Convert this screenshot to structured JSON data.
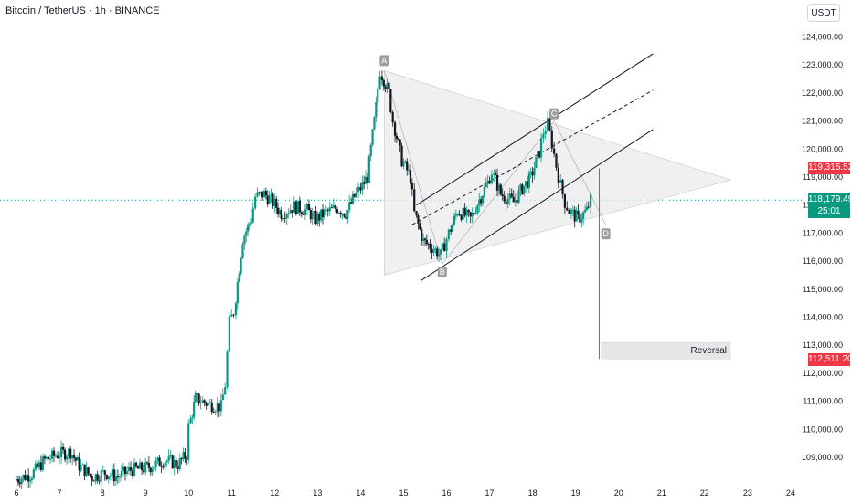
{
  "header": {
    "symbol_title": "Bitcoin / TetherUS · 1h · BINANCE",
    "currency_button": "USDT"
  },
  "price_tags": {
    "upper_red": "119,315.52",
    "current": "118,179.49",
    "countdown": "25:01",
    "lower_red": "112,511.20"
  },
  "annotations": {
    "point_a": "A",
    "point_b": "B",
    "point_c": "C",
    "point_d": "D",
    "reversal": "Reversal"
  },
  "colors": {
    "up": "#089981",
    "down": "#131722",
    "accent_red": "#f23645",
    "current_line": "#089981"
  },
  "chart_data": {
    "type": "candlestick",
    "title": "Bitcoin / TetherUS · 1h · BINANCE",
    "y_ticks": [
      109000,
      110000,
      111000,
      112000,
      113000,
      114000,
      115000,
      116000,
      117000,
      118000,
      119000,
      120000,
      121000,
      122000,
      123000,
      124000
    ],
    "y_tick_labels": [
      "109,000.00",
      "110,000.00",
      "111,000.00",
      "112,000.00",
      "113,000.00",
      "114,000.00",
      "115,000.00",
      "116,000.00",
      "117,000.00",
      "118,000.00",
      "119,000.00",
      "120,000.00",
      "121,000.00",
      "122,000.00",
      "123,000.00",
      "124,000.00"
    ],
    "x_ticks": [
      6,
      7,
      8,
      9,
      10,
      11,
      12,
      13,
      14,
      15,
      16,
      17,
      18,
      19,
      20,
      21,
      22,
      23,
      24
    ],
    "x_tick_labels": [
      "6",
      "7",
      "8",
      "9",
      "10",
      "11",
      "12",
      "13",
      "14",
      "15",
      "16",
      "17",
      "18",
      "19",
      "20",
      "21",
      "22",
      "23",
      "24"
    ],
    "current_price": 118179.49,
    "price_path": [
      [
        6.0,
        108200
      ],
      [
        6.4,
        108400
      ],
      [
        6.7,
        108900
      ],
      [
        7.0,
        109100
      ],
      [
        7.3,
        109200
      ],
      [
        7.5,
        108700
      ],
      [
        7.8,
        108300
      ],
      [
        8.1,
        108450
      ],
      [
        8.4,
        108300
      ],
      [
        8.7,
        108550
      ],
      [
        9.0,
        108600
      ],
      [
        9.2,
        108700
      ],
      [
        9.5,
        108900
      ],
      [
        9.8,
        108750
      ],
      [
        10.0,
        109100
      ],
      [
        10.05,
        110100
      ],
      [
        10.2,
        111100
      ],
      [
        10.5,
        110900
      ],
      [
        10.8,
        110800
      ],
      [
        10.9,
        111600
      ],
      [
        11.0,
        113800
      ],
      [
        11.1,
        114200
      ],
      [
        11.3,
        116800
      ],
      [
        11.5,
        117500
      ],
      [
        11.6,
        118300
      ],
      [
        11.8,
        118400
      ],
      [
        12.0,
        118100
      ],
      [
        12.2,
        117700
      ],
      [
        12.5,
        117950
      ],
      [
        12.8,
        117800
      ],
      [
        13.0,
        117500
      ],
      [
        13.2,
        117700
      ],
      [
        13.5,
        117900
      ],
      [
        13.7,
        117700
      ],
      [
        13.9,
        118300
      ],
      [
        14.0,
        118500
      ],
      [
        14.2,
        119000
      ],
      [
        14.4,
        121500
      ],
      [
        14.5,
        122800
      ],
      [
        14.7,
        122000
      ],
      [
        14.8,
        121000
      ],
      [
        15.0,
        119600
      ],
      [
        15.2,
        119000
      ],
      [
        15.3,
        117700
      ],
      [
        15.5,
        116700
      ],
      [
        15.7,
        116500
      ],
      [
        15.9,
        116200
      ],
      [
        16.0,
        116600
      ],
      [
        16.1,
        117000
      ],
      [
        16.3,
        117800
      ],
      [
        16.6,
        117500
      ],
      [
        16.8,
        118200
      ],
      [
        17.0,
        118800
      ],
      [
        17.1,
        119200
      ],
      [
        17.3,
        118400
      ],
      [
        17.6,
        118100
      ],
      [
        17.8,
        118600
      ],
      [
        18.0,
        119000
      ],
      [
        18.2,
        119900
      ],
      [
        18.3,
        120600
      ],
      [
        18.4,
        120900
      ],
      [
        18.5,
        120200
      ],
      [
        18.6,
        119400
      ],
      [
        18.7,
        118700
      ],
      [
        18.8,
        118100
      ],
      [
        18.9,
        117800
      ],
      [
        19.1,
        117500
      ],
      [
        19.3,
        117800
      ],
      [
        19.4,
        118180
      ]
    ],
    "patterns": {
      "triangle": {
        "apex": [
          22.6,
          118900
        ],
        "upper_start": [
          14.55,
          122800
        ],
        "lower_start": [
          14.55,
          115500
        ]
      },
      "channel_upper": [
        [
          15.3,
          118000
        ],
        [
          20.8,
          123400
        ]
      ],
      "channel_middle": [
        [
          15.2,
          117300
        ],
        [
          20.8,
          122100
        ]
      ],
      "channel_lower": [
        [
          15.4,
          115300
        ],
        [
          20.8,
          120700
        ]
      ],
      "points": {
        "A": [
          14.55,
          122800
        ],
        "B": [
          15.9,
          115900
        ],
        "C": [
          18.5,
          121000
        ],
        "D": [
          19.7,
          117300
        ]
      },
      "reversal_box": {
        "x": [
          19.6,
          22.6
        ],
        "y": [
          112511.2,
          113100
        ]
      },
      "red_line": {
        "x": 19.55,
        "y": [
          119315.52,
          112511.2
        ]
      }
    }
  }
}
